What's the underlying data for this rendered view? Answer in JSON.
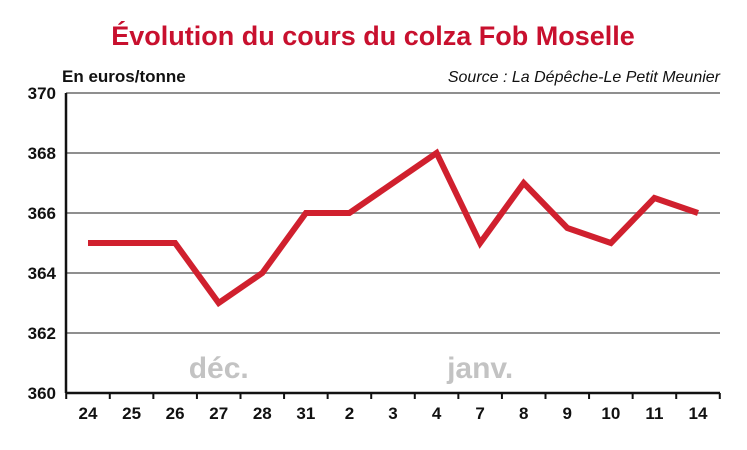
{
  "chart_data": {
    "type": "line",
    "title": "Évolution du cours du colza Fob Moselle",
    "ylabel": "En euros/tonne",
    "source": "Source : La Dépêche-Le Petit Meunier",
    "categories": [
      "24",
      "25",
      "26",
      "27",
      "28",
      "31",
      "2",
      "3",
      "4",
      "7",
      "8",
      "9",
      "10",
      "11",
      "14"
    ],
    "series": [
      {
        "values": [
          365,
          365,
          365,
          363,
          364,
          366,
          366,
          367,
          368,
          365,
          367,
          365.5,
          365,
          366.5,
          366
        ]
      }
    ],
    "ylim": [
      360,
      370
    ],
    "yticks": [
      "360",
      "362",
      "364",
      "366",
      "368",
      "370"
    ],
    "month_labels": [
      {
        "text": "déc.",
        "at_category": "27"
      },
      {
        "text": "janv.",
        "at_category": "7"
      }
    ],
    "grid": true,
    "colors": {
      "title": "#c8102e",
      "line": "#d0202e",
      "grid": "#8f8f8f",
      "axis": "#111111",
      "month_label": "#c3c3c3"
    }
  }
}
